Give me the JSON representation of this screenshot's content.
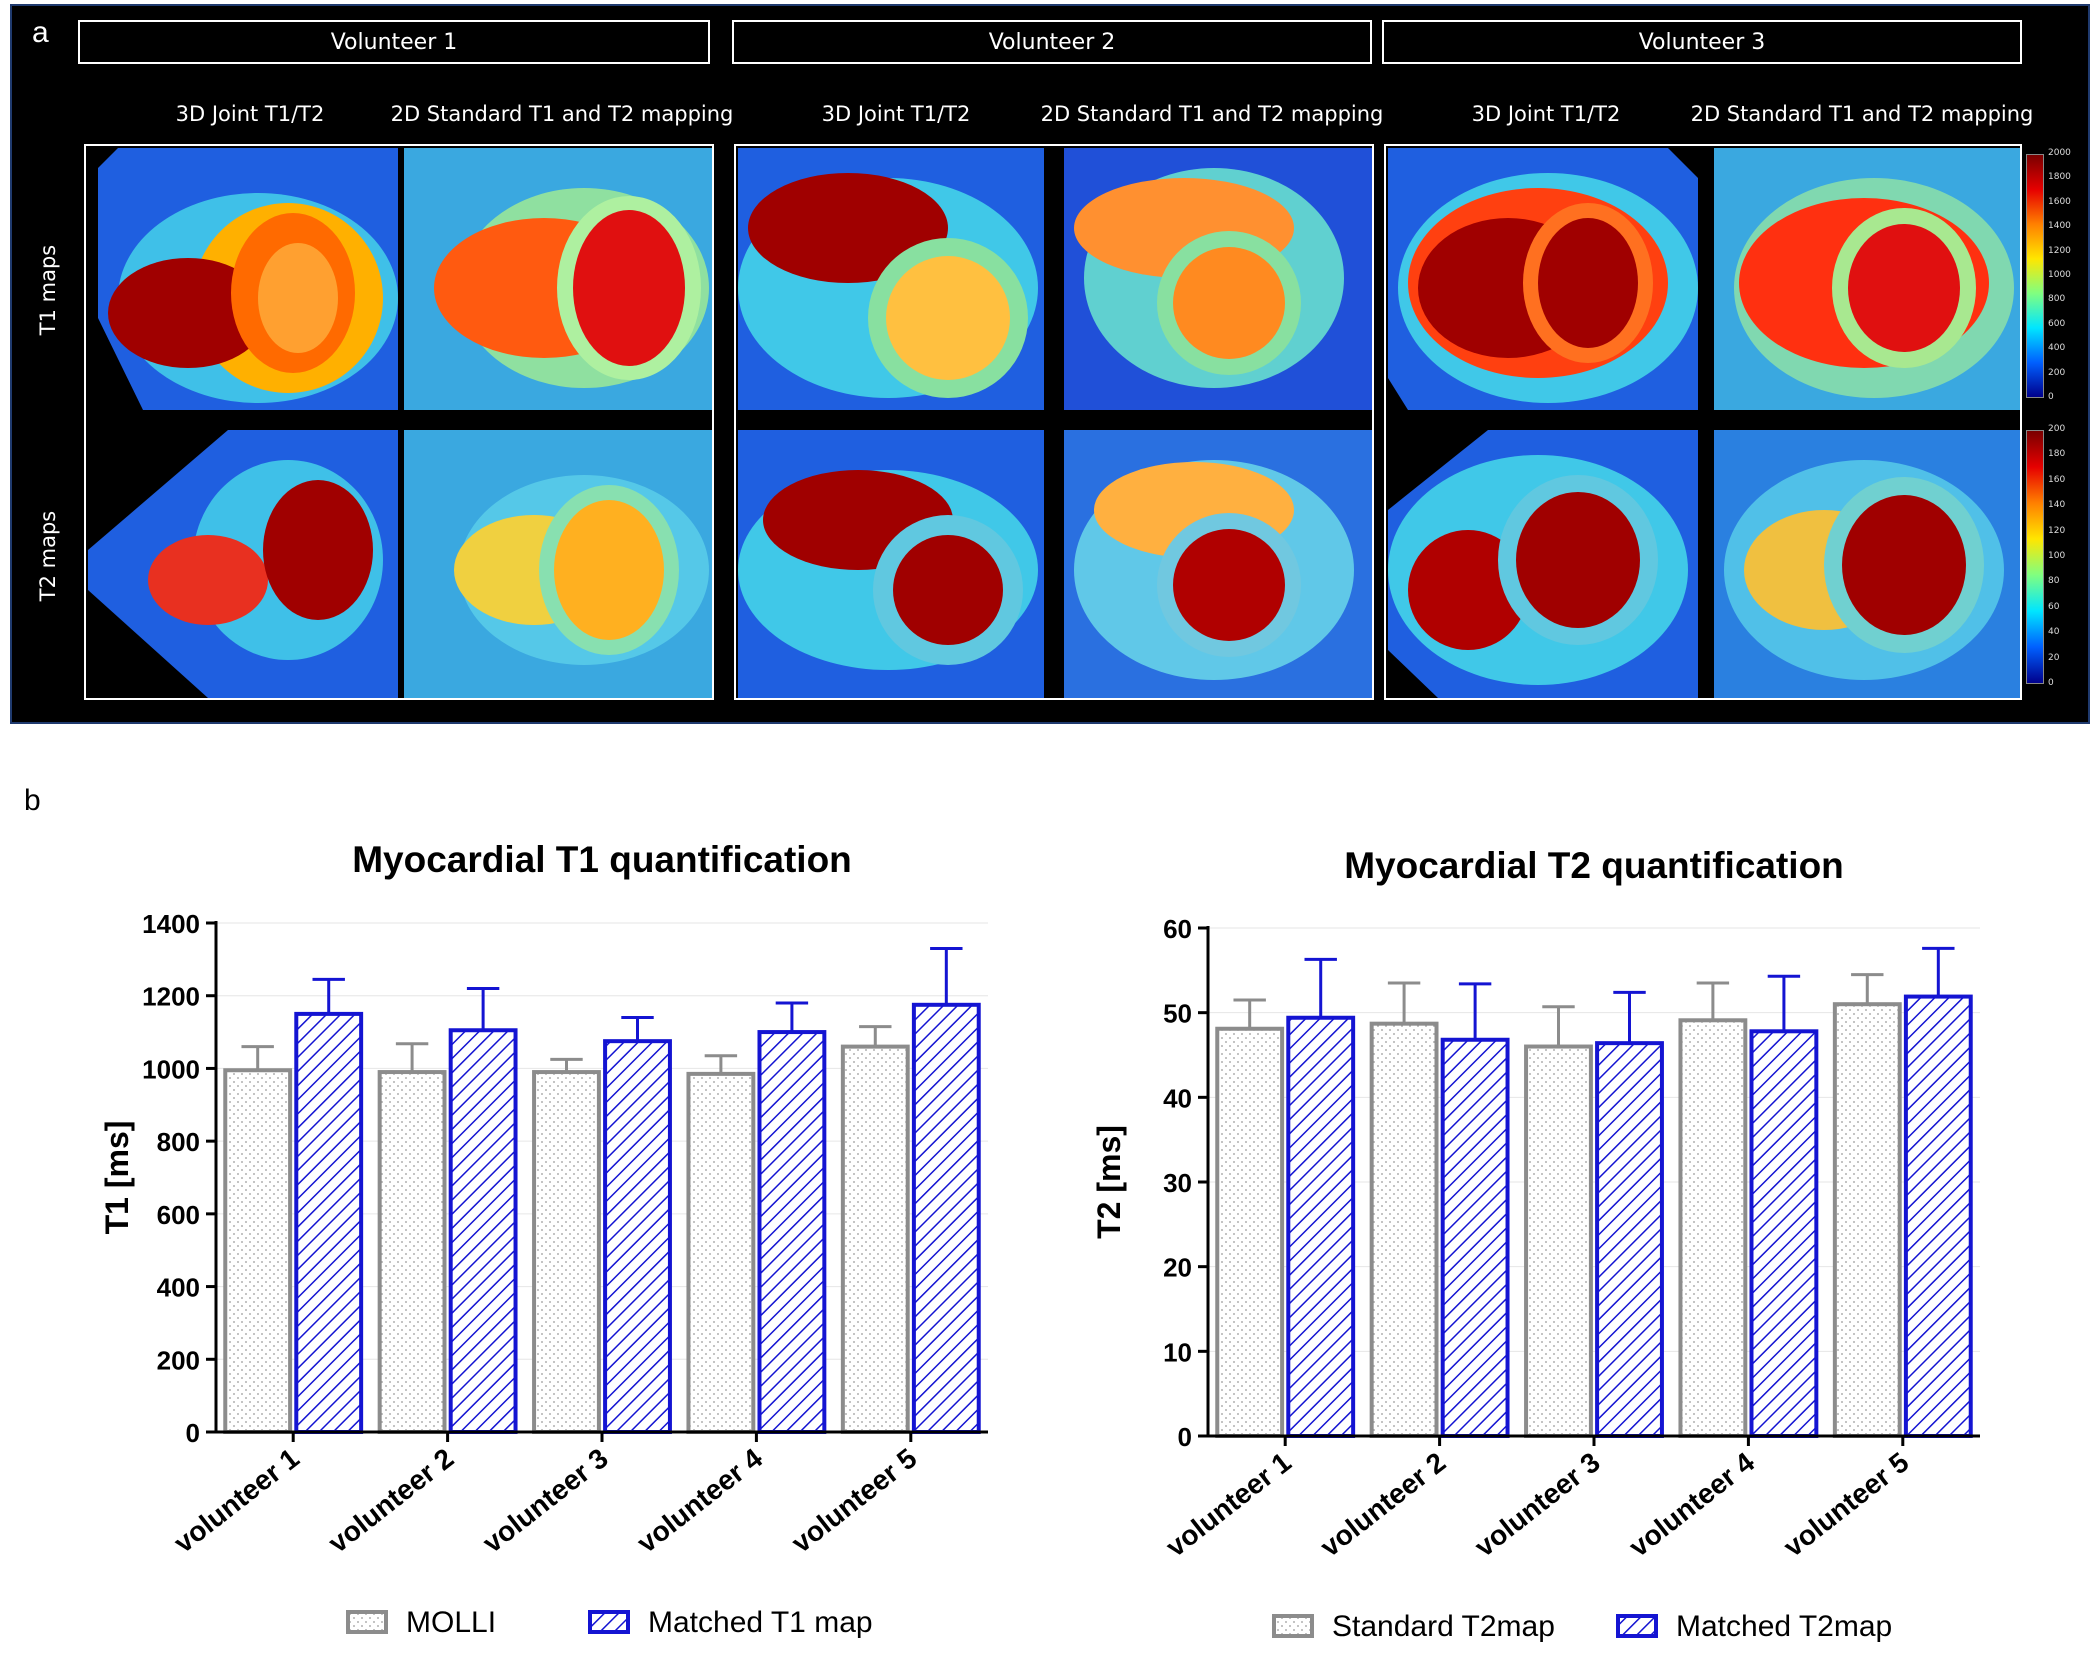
{
  "panel_a": {
    "letter": "a",
    "volunteers": [
      "Volunteer 1",
      "Volunteer 2",
      "Volunteer 3"
    ],
    "columns": [
      "3D Joint T1/T2",
      "2D Standard T1 and T2 mapping"
    ],
    "rows": [
      "T1 maps",
      "T2 maps"
    ],
    "colorbar_t1": [
      "2000",
      "1800",
      "1600",
      "1400",
      "1200",
      "1000",
      "800",
      "600",
      "400",
      "200",
      "0"
    ],
    "colorbar_t2": [
      "200",
      "180",
      "160",
      "140",
      "120",
      "100",
      "80",
      "60",
      "40",
      "20",
      "0"
    ]
  },
  "panel_b": {
    "letter": "b"
  },
  "chart_data": [
    {
      "type": "bar",
      "title": "Myocardial T1 quantification",
      "xlabel": "",
      "ylabel": "T1 [ms]",
      "ylim": [
        0,
        1400
      ],
      "yticks": [
        "0",
        "200",
        "400",
        "600",
        "800",
        "1000",
        "1200",
        "1400"
      ],
      "categories": [
        "volunteer 1",
        "volunteer 2",
        "volunteer 3",
        "volunteer 4",
        "volunteer 5"
      ],
      "series": [
        {
          "name": "MOLLI",
          "values": [
            995,
            990,
            990,
            985,
            1060
          ],
          "errors": [
            65,
            78,
            35,
            50,
            55
          ],
          "color": "#8c8c8c",
          "pattern": "dots"
        },
        {
          "name": "Matched T1 map",
          "values": [
            1150,
            1105,
            1075,
            1100,
            1175
          ],
          "errors": [
            95,
            115,
            65,
            80,
            155
          ],
          "color": "#1414d2",
          "pattern": "hatch"
        }
      ]
    },
    {
      "type": "bar",
      "title": "Myocardial T2 quantification",
      "xlabel": "",
      "ylabel": "T2 [ms]",
      "ylim": [
        0,
        60
      ],
      "yticks": [
        "0",
        "10",
        "20",
        "30",
        "40",
        "50",
        "60"
      ],
      "categories": [
        "volunteer 1",
        "volunteer 2",
        "volunteer 3",
        "volunteer 4",
        "volunteer 5"
      ],
      "series": [
        {
          "name": "Standard T2map",
          "values": [
            48.1,
            48.7,
            46.0,
            49.1,
            51.0
          ],
          "errors": [
            3.4,
            4.8,
            4.7,
            4.4,
            3.5
          ],
          "color": "#8c8c8c",
          "pattern": "dots"
        },
        {
          "name": "Matched T2map",
          "values": [
            49.4,
            46.8,
            46.4,
            47.8,
            51.9
          ],
          "errors": [
            6.9,
            6.6,
            6.0,
            6.5,
            5.7
          ],
          "color": "#1414d2",
          "pattern": "hatch"
        }
      ]
    }
  ]
}
